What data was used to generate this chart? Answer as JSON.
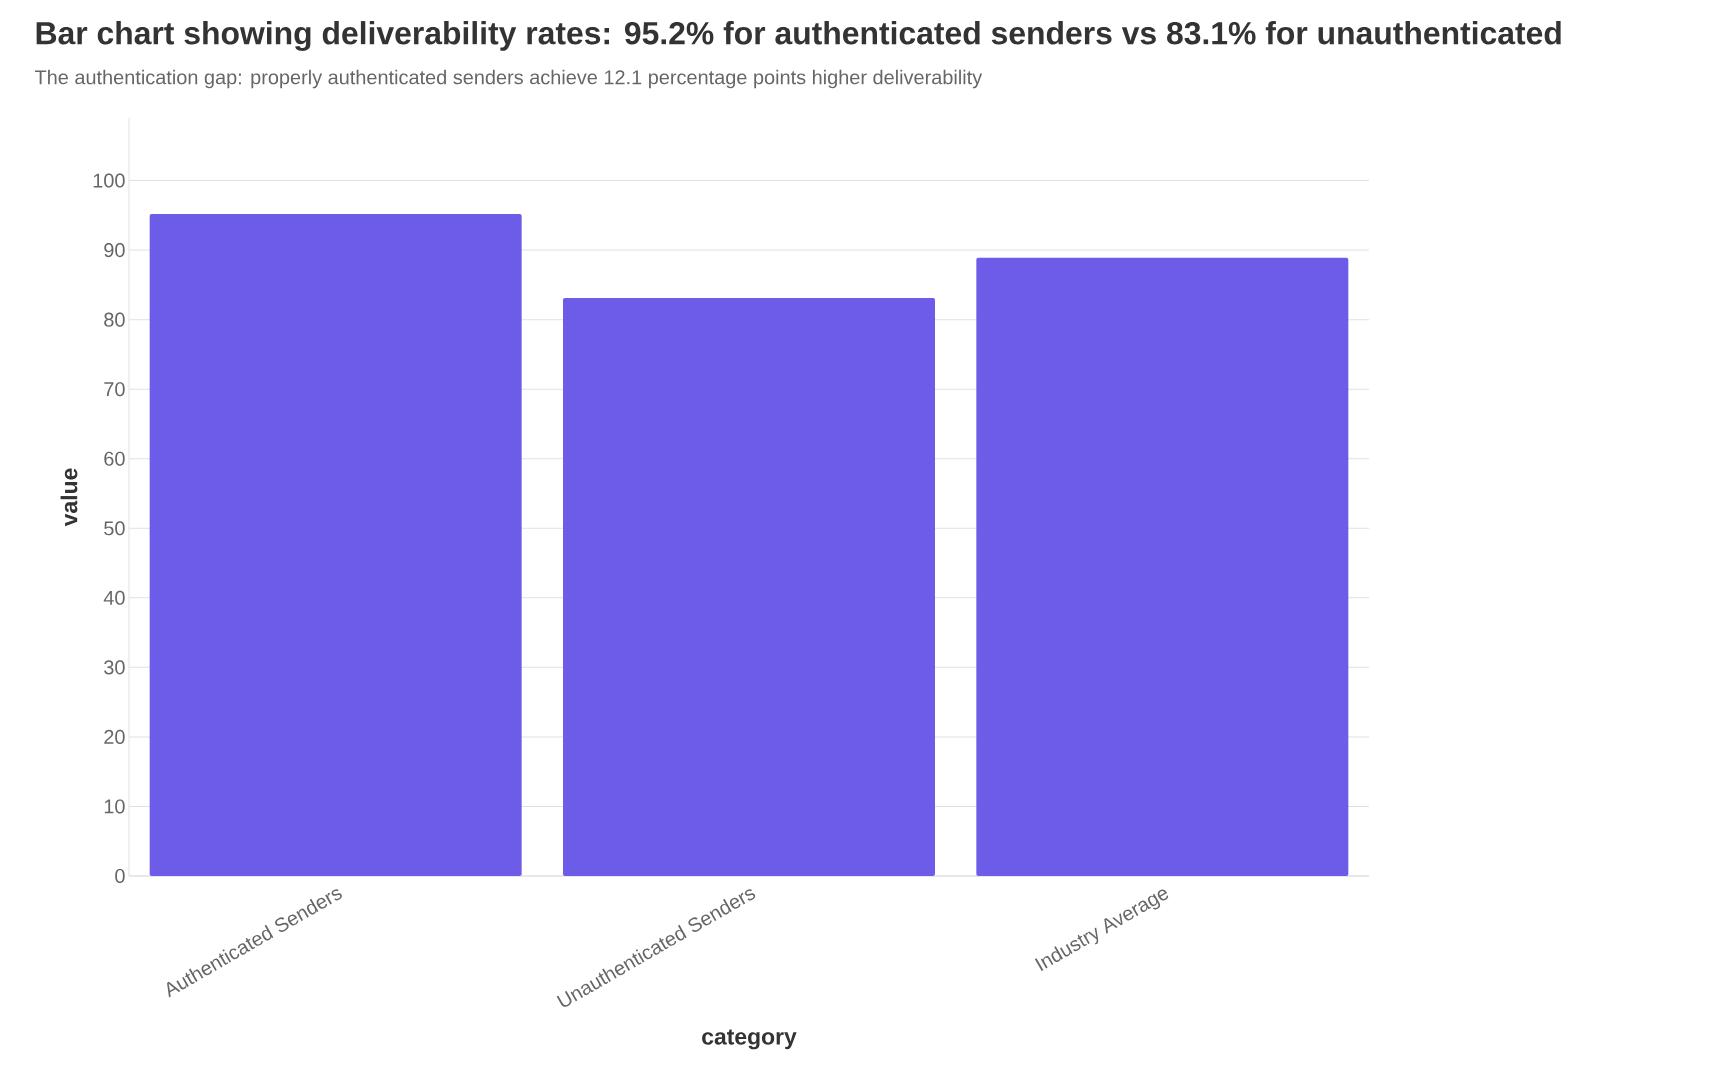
{
  "chart_data": {
    "type": "bar",
    "title": "Bar chart showing deliverability rates: 95.2% for authenticated senders vs 83.1% for unauthenticated",
    "subtitle": "The authentication gap: properly authenticated senders achieve 12.1 percentage points higher deliverability",
    "xlabel": "category",
    "ylabel": "value",
    "categories": [
      "Authenticated Senders",
      "Unauthenticated Senders",
      "Industry Average"
    ],
    "values": [
      95.2,
      83.1,
      88.9
    ],
    "color": "#6c5ce7",
    "ylim": [
      0,
      109
    ],
    "yticks": [
      0,
      10,
      20,
      30,
      40,
      50,
      60,
      70,
      80,
      90,
      100
    ],
    "grid": "y"
  }
}
